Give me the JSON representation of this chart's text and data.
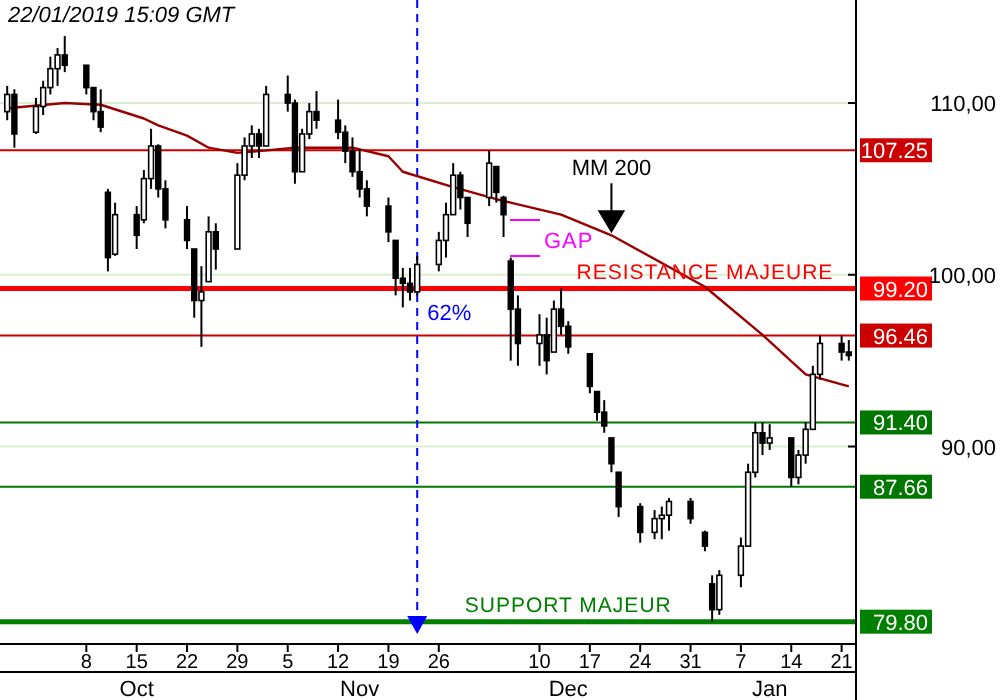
{
  "chart_data": {
    "type": "candlestick",
    "title": "22/01/2019 15:09 GMT",
    "x": [
      "2018-09-27",
      "2018-09-28",
      "2018-10-01",
      "2018-10-02",
      "2018-10-03",
      "2018-10-04",
      "2018-10-05",
      "2018-10-08",
      "2018-10-09",
      "2018-10-10",
      "2018-10-11",
      "2018-10-12",
      "2018-10-15",
      "2018-10-16",
      "2018-10-17",
      "2018-10-18",
      "2018-10-19",
      "2018-10-22",
      "2018-10-23",
      "2018-10-24",
      "2018-10-25",
      "2018-10-26",
      "2018-10-29",
      "2018-10-30",
      "2018-10-31",
      "2018-11-01",
      "2018-11-02",
      "2018-11-05",
      "2018-11-06",
      "2018-11-07",
      "2018-11-08",
      "2018-11-09",
      "2018-11-12",
      "2018-11-13",
      "2018-11-14",
      "2018-11-15",
      "2018-11-16",
      "2018-11-19",
      "2018-11-20",
      "2018-11-21",
      "2018-11-22",
      "2018-11-23",
      "2018-11-26",
      "2018-11-27",
      "2018-11-28",
      "2018-11-29",
      "2018-11-30",
      "2018-12-03",
      "2018-12-04",
      "2018-12-05",
      "2018-12-06",
      "2018-12-07",
      "2018-12-10",
      "2018-12-11",
      "2018-12-12",
      "2018-12-13",
      "2018-12-14",
      "2018-12-17",
      "2018-12-18",
      "2018-12-19",
      "2018-12-20",
      "2018-12-21",
      "2018-12-24",
      "2018-12-26",
      "2018-12-27",
      "2018-12-28",
      "2018-12-31",
      "2019-01-02",
      "2019-01-03",
      "2019-01-04",
      "2019-01-07",
      "2019-01-08",
      "2019-01-09",
      "2019-01-10",
      "2019-01-11",
      "2019-01-14",
      "2019-01-15",
      "2019-01-16",
      "2019-01-17",
      "2019-01-18",
      "2019-01-21",
      "2019-01-22"
    ],
    "series": [
      {
        "type": "candlestick",
        "color": "#000000",
        "ohlc": [
          [
            109.5,
            111.0,
            109.0,
            110.5
          ],
          [
            110.5,
            110.8,
            107.4,
            108.2
          ],
          [
            108.3,
            110.3,
            108.2,
            109.8
          ],
          [
            109.8,
            111.3,
            109.3,
            110.9
          ],
          [
            110.9,
            112.7,
            110.5,
            112.0
          ],
          [
            112.0,
            113.2,
            111.0,
            112.8
          ],
          [
            112.8,
            113.9,
            111.8,
            112.2
          ],
          [
            112.2,
            112.2,
            110.5,
            110.9
          ],
          [
            110.9,
            110.9,
            109.0,
            109.5
          ],
          [
            109.5,
            110.8,
            108.3,
            108.6
          ],
          [
            104.8,
            105.0,
            100.2,
            101.0
          ],
          [
            101.2,
            104.2,
            101.1,
            103.5
          ],
          [
            103.5,
            104.0,
            101.5,
            102.3
          ],
          [
            103.2,
            106.1,
            103.0,
            105.6
          ],
          [
            105.6,
            108.5,
            105.0,
            107.5
          ],
          [
            107.5,
            107.6,
            104.5,
            105.0
          ],
          [
            105.0,
            105.5,
            102.7,
            103.2
          ],
          [
            103.2,
            104.0,
            101.5,
            102.0
          ],
          [
            101.5,
            101.5,
            97.5,
            98.5
          ],
          [
            98.5,
            100.5,
            95.8,
            99.0
          ],
          [
            99.6,
            103.4,
            99.6,
            102.5
          ],
          [
            102.5,
            103.0,
            100.3,
            101.5
          ],
          [
            101.5,
            106.5,
            101.5,
            105.8
          ],
          [
            105.8,
            108.0,
            105.5,
            107.5
          ],
          [
            107.5,
            108.7,
            106.8,
            108.2
          ],
          [
            108.2,
            108.5,
            106.8,
            107.5
          ],
          [
            107.5,
            111.0,
            107.5,
            110.5
          ],
          [
            110.5,
            111.6,
            109.5,
            110.0
          ],
          [
            110.0,
            110.2,
            105.3,
            106.0
          ],
          [
            106.0,
            108.5,
            106.0,
            108.2
          ],
          [
            108.2,
            110.0,
            107.9,
            109.5
          ],
          [
            109.5,
            110.7,
            108.5,
            109.0
          ],
          [
            109.0,
            110.2,
            107.9,
            108.3
          ],
          [
            108.3,
            108.7,
            106.5,
            107.2
          ],
          [
            107.2,
            108.0,
            105.7,
            106.0
          ],
          [
            106.0,
            107.3,
            104.5,
            105.0
          ],
          [
            105.0,
            105.5,
            103.4,
            104.0
          ],
          [
            104.0,
            104.5,
            101.9,
            102.5
          ],
          [
            102.0,
            102.0,
            98.8,
            99.8
          ],
          [
            99.8,
            100.4,
            98.1,
            99.5
          ],
          [
            99.5,
            100.4,
            98.5,
            99.0
          ],
          [
            99.0,
            101.1,
            98.8,
            100.6
          ],
          [
            100.6,
            102.5,
            100.2,
            102.0
          ],
          [
            102.0,
            104.2,
            101.0,
            103.5
          ],
          [
            103.5,
            106.5,
            103.5,
            105.8
          ],
          [
            105.8,
            106.0,
            103.8,
            104.5
          ],
          [
            104.5,
            104.5,
            102.2,
            103.0
          ],
          [
            104.5,
            107.25,
            104.0,
            106.5
          ],
          [
            106.3,
            106.3,
            104.2,
            104.8
          ],
          [
            104.5,
            104.6,
            102.2,
            103.5
          ],
          [
            100.8,
            101.0,
            95.0,
            98.0
          ],
          [
            98.0,
            98.8,
            94.7,
            96.0
          ],
          [
            96.0,
            97.7,
            94.7,
            96.5
          ],
          [
            96.5,
            97.5,
            94.2,
            95.0
          ],
          [
            95.5,
            98.5,
            95.5,
            98.0
          ],
          [
            98.0,
            99.2,
            96.5,
            97.0
          ],
          [
            97.0,
            97.3,
            95.4,
            95.8
          ],
          [
            95.4,
            95.4,
            93.1,
            93.5
          ],
          [
            93.2,
            93.2,
            91.5,
            92.0
          ],
          [
            92.0,
            92.7,
            90.8,
            91.2
          ],
          [
            90.5,
            90.5,
            88.5,
            89.0
          ],
          [
            88.5,
            88.5,
            85.9,
            86.5
          ],
          [
            86.5,
            86.7,
            84.4,
            85.0
          ],
          [
            85.0,
            86.3,
            84.6,
            85.8
          ],
          [
            85.8,
            86.5,
            84.6,
            86.0
          ],
          [
            86.0,
            87.0,
            85.1,
            86.8
          ],
          [
            86.8,
            87.0,
            85.5,
            85.8
          ],
          [
            85.0,
            85.1,
            83.9,
            84.2
          ],
          [
            82.0,
            82.5,
            79.8,
            80.5
          ],
          [
            80.5,
            82.8,
            80.2,
            82.5
          ],
          [
            82.5,
            84.7,
            81.8,
            84.2
          ],
          [
            84.2,
            89.0,
            84.2,
            88.5
          ],
          [
            88.5,
            91.4,
            88.2,
            90.8
          ],
          [
            90.8,
            91.4,
            89.5,
            90.2
          ],
          [
            90.2,
            91.3,
            89.8,
            90.5
          ],
          [
            90.5,
            90.5,
            87.66,
            88.2
          ],
          [
            88.2,
            89.8,
            87.8,
            89.5
          ],
          [
            89.5,
            91.4,
            89.0,
            91.0
          ],
          [
            91.0,
            94.7,
            91.0,
            94.2
          ],
          [
            94.2,
            96.46,
            93.9,
            96.0
          ],
          [
            96.0,
            96.46,
            95.0,
            95.5
          ],
          [
            95.5,
            96.2,
            95.0,
            95.3
          ]
        ]
      },
      {
        "type": "line",
        "color": "#990000",
        "x": [
          "2018-09-27",
          "2018-10-05",
          "2018-10-10",
          "2018-10-16",
          "2018-10-18",
          "2018-10-22",
          "2018-10-25",
          "2018-10-29",
          "2018-11-01",
          "2018-11-06",
          "2018-11-14",
          "2018-11-19",
          "2018-11-21",
          "2018-11-28",
          "2018-12-04",
          "2018-12-07",
          "2018-12-13",
          "2018-12-20",
          "2019-01-02",
          "2019-01-10",
          "2019-01-16",
          "2019-01-22"
        ],
        "values": [
          109.7,
          110.0,
          109.9,
          109.1,
          108.7,
          108.1,
          107.4,
          107.1,
          107.2,
          107.4,
          107.4,
          106.9,
          106.0,
          105.1,
          104.4,
          104.1,
          103.5,
          102.3,
          99.3,
          96.5,
          94.2,
          93.5
        ]
      }
    ],
    "xlim": [
      "2018-09-26",
      "2019-01-23"
    ],
    "xticks": [
      {
        "value": "2018-10-08",
        "label": "8"
      },
      {
        "value": "2018-10-15",
        "label": "15"
      },
      {
        "value": "2018-10-22",
        "label": "22"
      },
      {
        "value": "2018-10-29",
        "label": "29"
      },
      {
        "value": "2018-11-05",
        "label": "5"
      },
      {
        "value": "2018-11-12",
        "label": "12"
      },
      {
        "value": "2018-11-19",
        "label": "19"
      },
      {
        "value": "2018-11-26",
        "label": "26"
      },
      {
        "value": "2018-12-10",
        "label": "10"
      },
      {
        "value": "2018-12-17",
        "label": "17"
      },
      {
        "value": "2018-12-24",
        "label": "24"
      },
      {
        "value": "2018-12-31",
        "label": "31"
      },
      {
        "value": "2019-01-07",
        "label": "7"
      },
      {
        "value": "2019-01-14",
        "label": "14"
      },
      {
        "value": "2019-01-21",
        "label": "21"
      }
    ],
    "x2lim": [
      "2018-09-26",
      "2019-01-23"
    ],
    "x2ticks": [
      {
        "value": "2018-10-15",
        "label": "Oct"
      },
      {
        "value": "2018-11-15",
        "label": "Nov"
      },
      {
        "value": "2018-12-14",
        "label": "Dec"
      },
      {
        "value": "2019-01-11",
        "label": "Jan"
      }
    ],
    "ylim": [
      78.5,
      116
    ],
    "yticks": [
      {
        "value": 90,
        "label": "90,00"
      },
      {
        "value": 100,
        "label": "100,00"
      },
      {
        "value": 110,
        "label": "110,00"
      }
    ],
    "grid": "y",
    "ref_lines": [
      {
        "axis": "y",
        "value": 107.25,
        "color": "#cc0000",
        "label": "107.25"
      },
      {
        "axis": "y",
        "value": 99.2,
        "color": "#ff0000",
        "label": "99.20"
      },
      {
        "axis": "y",
        "value": 96.46,
        "color": "#cc0000",
        "label": "96.46"
      },
      {
        "axis": "y",
        "value": 91.4,
        "color": "#007700",
        "label": "91.40"
      },
      {
        "axis": "y",
        "value": 87.66,
        "color": "#007700",
        "label": "87.66"
      },
      {
        "axis": "y",
        "value": 79.8,
        "color": "#008000",
        "label": "79.80"
      },
      {
        "axis": "x",
        "value": "2018-11-23",
        "color": "#0000ff",
        "line_style": "dashed",
        "label": "62%"
      }
    ],
    "annotations": [
      {
        "text": "MM 200",
        "x": "2018-12-20",
        "y": 102.3
      },
      "GAP",
      {
        "text": "RESISTANCE MAJEURE",
        "x": "2019-01-02",
        "y": 99.2
      },
      {
        "text": "SUPPORT MAJEUR",
        "x": "2018-12-14",
        "y": 79.8
      }
    ]
  }
}
